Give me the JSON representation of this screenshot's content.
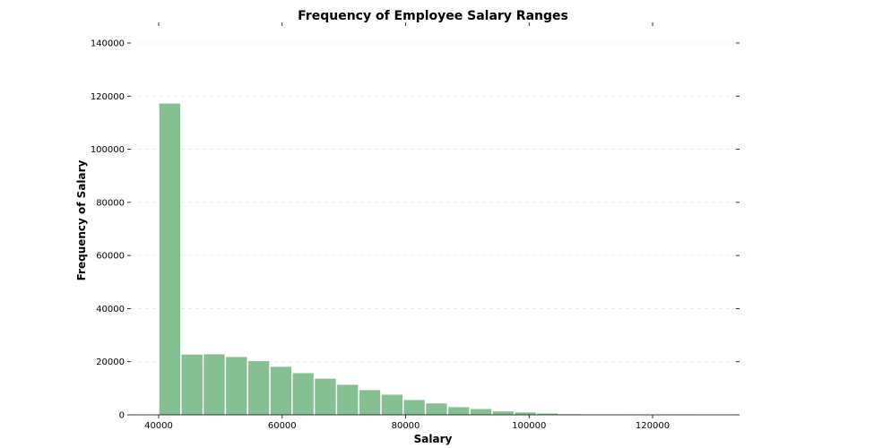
{
  "chart_data": {
    "type": "bar",
    "title": "Frequency of Employee Salary Ranges",
    "xlabel": "Salary",
    "ylabel": "Frequency of Salary",
    "xlim": [
      35500,
      133500
    ],
    "ylim": [
      0,
      140000
    ],
    "bar_color": "#86bf91",
    "x_ticks": [
      40000,
      60000,
      80000,
      100000,
      120000
    ],
    "y_ticks": [
      0,
      20000,
      40000,
      60000,
      80000,
      100000,
      120000,
      140000
    ],
    "grid": true,
    "bin_edges": [
      40000,
      43600,
      47200,
      50800,
      54400,
      58000,
      61600,
      65200,
      68800,
      72400,
      76000,
      79600,
      83200,
      86800,
      90400,
      94000,
      97600,
      101200,
      104800,
      108400,
      112000,
      115600,
      119200,
      122800,
      126400,
      130000
    ],
    "values": [
      117200,
      22700,
      22800,
      21800,
      20200,
      18100,
      15700,
      13600,
      11300,
      9300,
      7600,
      5600,
      4300,
      2900,
      2200,
      1300,
      900,
      500,
      250,
      130,
      60,
      30,
      15,
      8,
      4
    ]
  }
}
